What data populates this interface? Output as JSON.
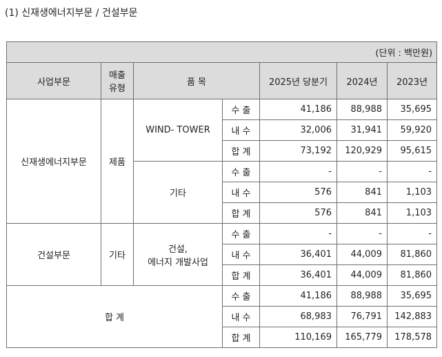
{
  "heading": "(1) 신재생에너지부문 / 건설부문",
  "unit": "(단위 : 백만원)",
  "headers": {
    "segment": "사업부문",
    "sales_type_l1": "매출",
    "sales_type_l2": "유형",
    "item": "품 목",
    "col1": "2025년 당분기",
    "col2": "2024년",
    "col3": "2023년"
  },
  "kinds": {
    "export": "수 출",
    "domestic": "내 수",
    "total": "합 계"
  },
  "rows": [
    {
      "segment": "신재생에너지부문",
      "sales_type": "제품",
      "item": "WIND- TOWER",
      "values": [
        [
          "41,186",
          "88,988",
          "35,695"
        ],
        [
          "32,006",
          "31,941",
          "59,920"
        ],
        [
          "73,192",
          "120,929",
          "95,615"
        ]
      ]
    },
    {
      "item": "기타",
      "values": [
        [
          "-",
          "-",
          "-"
        ],
        [
          "576",
          "841",
          "1,103"
        ],
        [
          "576",
          "841",
          "1,103"
        ]
      ]
    },
    {
      "segment": "건설부문",
      "sales_type": "기타",
      "item_l1": "건설,",
      "item_l2": "에너지 개발사업",
      "values": [
        [
          "-",
          "-",
          "-"
        ],
        [
          "36,401",
          "44,009",
          "81,860"
        ],
        [
          "36,401",
          "44,009",
          "81,860"
        ]
      ]
    },
    {
      "segment": "합 계",
      "values": [
        [
          "41,186",
          "88,988",
          "35,695"
        ],
        [
          "68,983",
          "76,791",
          "142,883"
        ],
        [
          "110,169",
          "165,779",
          "178,578"
        ]
      ]
    }
  ]
}
